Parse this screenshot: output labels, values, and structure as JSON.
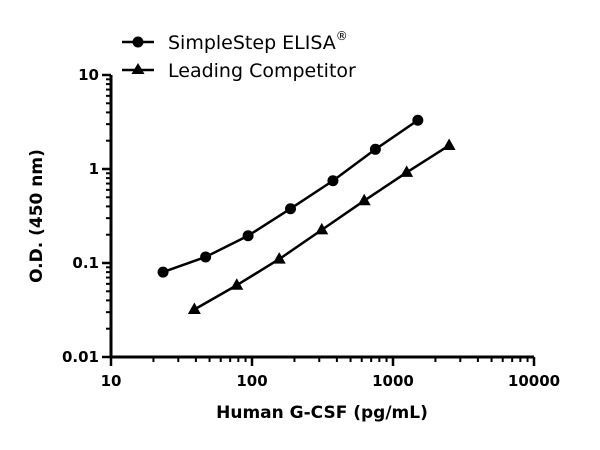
{
  "chart_data": {
    "type": "line",
    "title": "",
    "xlabel": "Human G-CSF (pg/mL)",
    "ylabel": "O.D. (450 nm)",
    "xscale": "log",
    "yscale": "log",
    "xlim": [
      10,
      10000
    ],
    "ylim": [
      0.01,
      10
    ],
    "xticks": [
      "10",
      "100",
      "1000",
      "10000"
    ],
    "yticks": [
      "0.01",
      "0.1",
      "1",
      "10"
    ],
    "grid": false,
    "legend_position": "top",
    "series": [
      {
        "name": "SimpleStep ELISA",
        "name_suffix": "®",
        "marker": "circle",
        "color": "#000000",
        "x": [
          23.4,
          46.9,
          93.8,
          187.5,
          375,
          750,
          1500
        ],
        "y": [
          0.08,
          0.116,
          0.195,
          0.378,
          0.75,
          1.62,
          3.3
        ]
      },
      {
        "name": "Leading Competitor",
        "marker": "triangle",
        "color": "#000000",
        "x": [
          39,
          78,
          156,
          312.5,
          625,
          1250,
          2500
        ],
        "y": [
          0.032,
          0.058,
          0.11,
          0.225,
          0.46,
          0.92,
          1.78
        ]
      }
    ]
  }
}
